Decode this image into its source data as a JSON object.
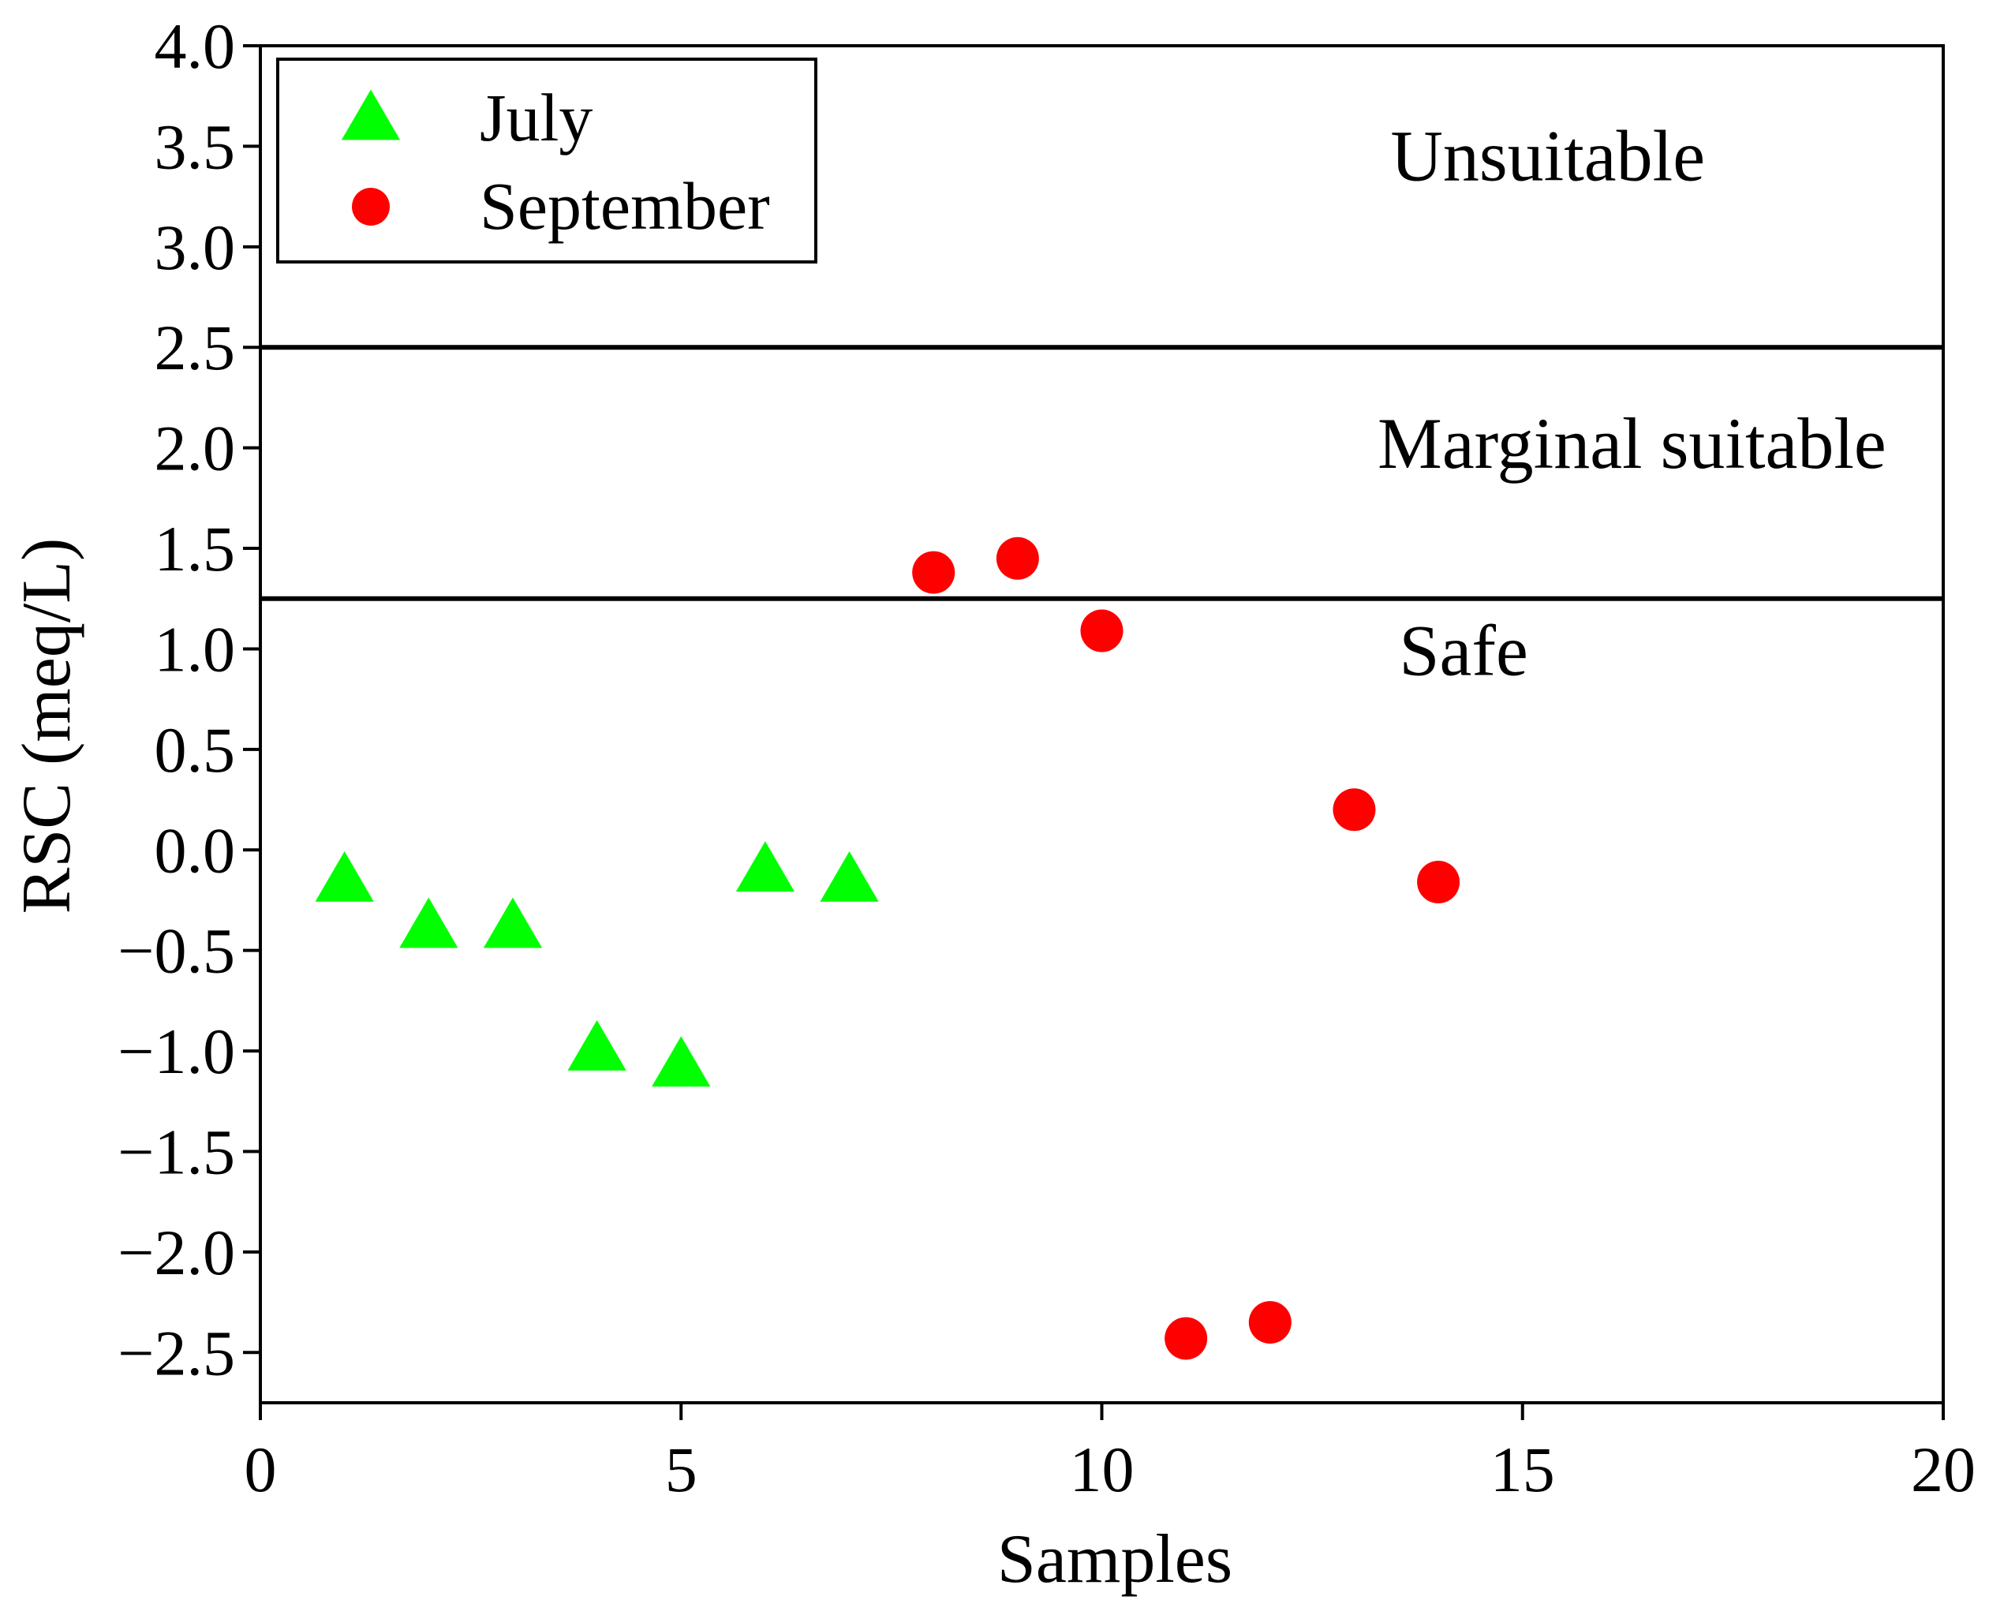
{
  "chart_data": {
    "type": "scatter",
    "title": "",
    "xlabel": "Samples",
    "ylabel": "RSC (meq/L)",
    "xlim": [
      0,
      20
    ],
    "ylim": [
      -2.75,
      4.0
    ],
    "xticks": [
      0,
      5,
      10,
      15,
      20
    ],
    "xtick_labels": [
      "0",
      "5",
      "10",
      "15",
      "20"
    ],
    "yticks": [
      4.0,
      3.5,
      3.0,
      2.5,
      2.0,
      1.5,
      1.0,
      0.5,
      0.0,
      -0.5,
      -1.0,
      -1.5,
      -2.0,
      -2.5
    ],
    "ytick_labels": [
      "4.0",
      "3.5",
      "3.0",
      "2.5",
      "2.0",
      "1.5",
      "1.0",
      "0.5",
      "0.0",
      "−0.5",
      "−1.0",
      "−1.5",
      "−2.0",
      "−2.5"
    ],
    "thresholds": [
      2.5,
      1.25
    ],
    "zones": [
      {
        "label": "Unsuitable",
        "x": 15.3,
        "y": 3.33
      },
      {
        "label": "Marginal suitable",
        "x": 16.3,
        "y": 1.9
      },
      {
        "label": "Safe",
        "x": 14.3,
        "y": 0.87
      }
    ],
    "legend": {
      "position": "top-left",
      "entries": [
        {
          "name": "July",
          "marker": "triangle",
          "color": "#00ff00"
        },
        {
          "name": "September",
          "marker": "circle",
          "color": "#ff0000"
        }
      ]
    },
    "series": [
      {
        "name": "July",
        "marker": "triangle",
        "color": "#00ff00",
        "x": [
          1,
          2,
          3,
          4,
          5,
          6,
          7
        ],
        "y": [
          -0.15,
          -0.38,
          -0.38,
          -0.99,
          -1.07,
          -0.1,
          -0.15
        ]
      },
      {
        "name": "September",
        "marker": "circle",
        "color": "#ff0000",
        "x": [
          8,
          9,
          10,
          11,
          12,
          13,
          14
        ],
        "y": [
          1.38,
          1.45,
          1.09,
          -2.43,
          -2.35,
          0.2,
          -0.16
        ]
      }
    ]
  }
}
